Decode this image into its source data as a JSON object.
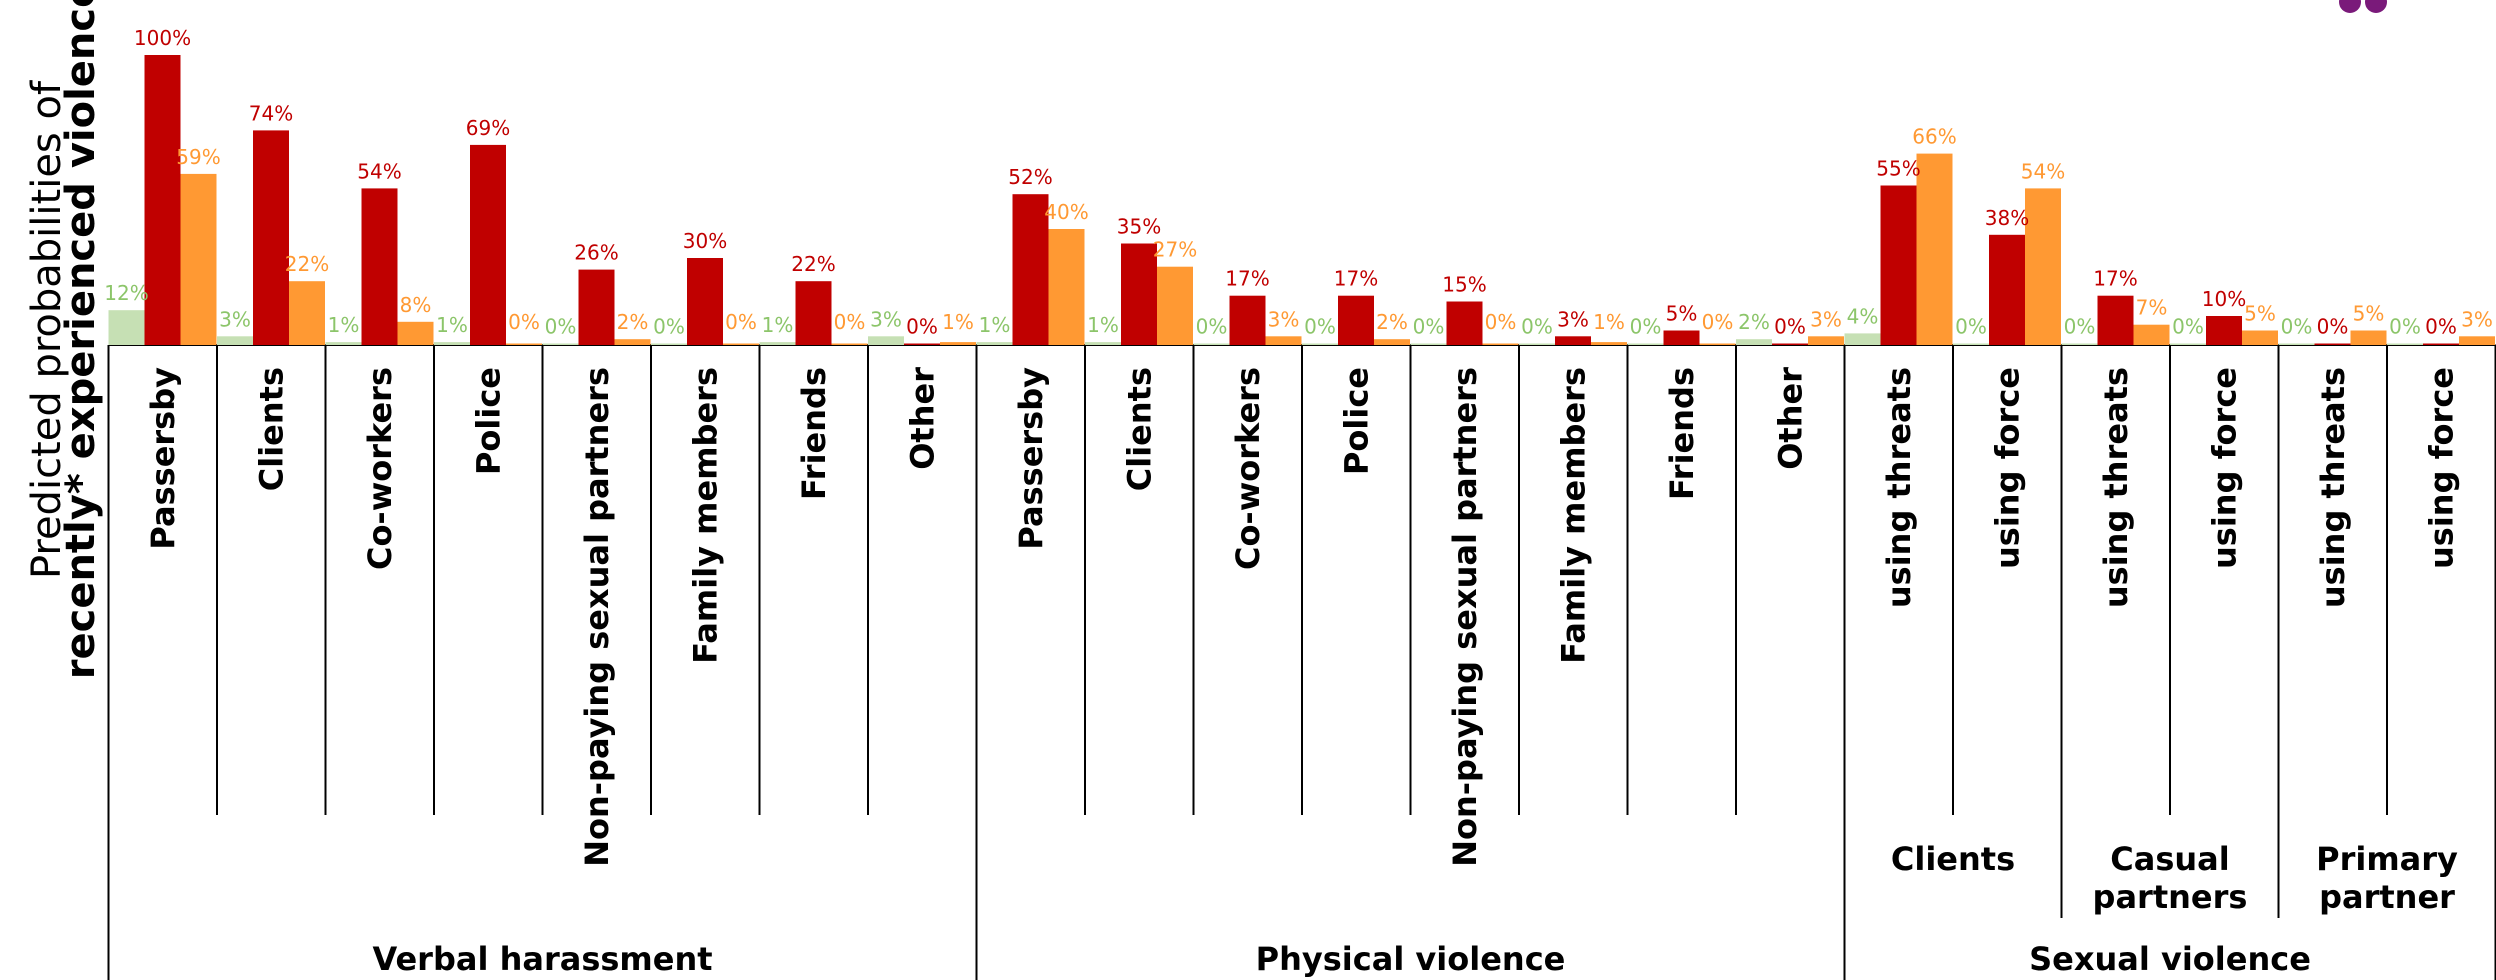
{
  "colors": {
    "series_0": "#c6e0b4",
    "series_1": "#c00000",
    "series_2": "#ff9933",
    "axis": "#000000",
    "logo": "#7a1a7a"
  },
  "y_axis_label": {
    "line1": "Predicted probabilities of",
    "line2": "recently* experienced violence"
  },
  "chart_data": {
    "type": "bar",
    "ylim": [
      0,
      100
    ],
    "grid": false,
    "legend": "none",
    "categories": [
      "Passersby",
      "Clients",
      "Co-workers",
      "Police",
      "Non-paying sexual partners",
      "Family members",
      "Friends",
      "Other",
      "Passersby",
      "Clients",
      "Co-workers",
      "Police",
      "Non-paying sexual partners",
      "Family members",
      "Friends",
      "Other",
      "using threats",
      "using force",
      "using threats",
      "using force",
      "using threats",
      "using force"
    ],
    "series": [
      {
        "values": [
          12,
          3,
          1,
          1,
          0,
          0,
          1,
          3,
          1,
          1,
          0,
          0,
          0,
          0,
          0,
          2,
          4,
          0,
          0,
          0,
          0,
          0
        ],
        "labels": [
          "12%",
          "3%",
          "1%",
          "1%",
          "0%",
          "0%",
          "1%",
          "3%",
          "1%",
          "1%",
          "0%",
          "0%",
          "0%",
          "0%",
          "0%",
          "2%",
          "4%",
          "0%",
          "0%",
          "0%",
          "0%",
          "0%"
        ]
      },
      {
        "values": [
          100,
          74,
          54,
          69,
          26,
          30,
          22,
          0,
          52,
          35,
          17,
          17,
          15,
          3,
          5,
          0,
          55,
          38,
          17,
          10,
          0,
          0
        ],
        "labels": [
          "100%",
          "74%",
          "54%",
          "69%",
          "26%",
          "30%",
          "22%",
          "0%",
          "52%",
          "35%",
          "17%",
          "17%",
          "15%",
          "3%",
          "5%",
          "0%",
          "55%",
          "38%",
          "17%",
          "10%",
          "0%",
          "0%"
        ]
      },
      {
        "values": [
          59,
          22,
          8,
          0,
          2,
          0,
          0,
          1,
          40,
          27,
          3,
          2,
          0,
          1,
          0,
          3,
          66,
          54,
          7,
          5,
          5,
          3
        ],
        "labels": [
          "59%",
          "22%",
          "8%",
          "0%",
          "2%",
          "0%",
          "0%",
          "1%",
          "40%",
          "27%",
          "3%",
          "2%",
          "0%",
          "1%",
          "0%",
          "3%",
          "66%",
          "54%",
          "7%",
          "5%",
          "5%",
          "3%"
        ]
      }
    ],
    "subgroups": [
      {
        "label_lines": [
          "Clients"
        ],
        "start": 16,
        "end": 17
      },
      {
        "label_lines": [
          "Casual",
          "partners"
        ],
        "start": 18,
        "end": 19
      },
      {
        "label_lines": [
          "Primary",
          "partner"
        ],
        "start": 20,
        "end": 21
      }
    ],
    "groups": [
      {
        "label": "Verbal  harassment",
        "start": 0,
        "end": 7
      },
      {
        "label": "Physical violence",
        "start": 8,
        "end": 15
      },
      {
        "label": "Sexual violence",
        "start": 16,
        "end": 21
      }
    ]
  }
}
